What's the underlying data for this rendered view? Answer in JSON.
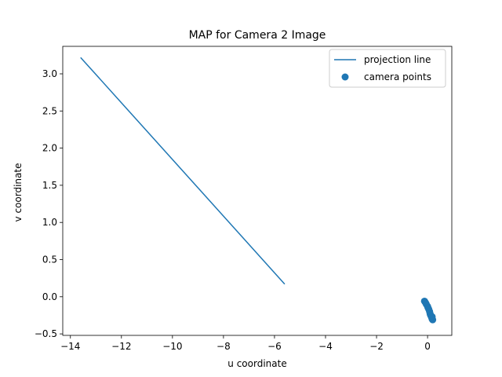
{
  "chart_data": {
    "type": "scatter",
    "title": "MAP for Camera 2 Image",
    "xlabel": "u coordinate",
    "ylabel": "v coordinate",
    "xlim": [
      -14.3,
      0.95
    ],
    "ylim": [
      -0.52,
      3.37
    ],
    "x_ticks": [
      -14,
      -12,
      -10,
      -8,
      -6,
      -4,
      -2,
      0
    ],
    "y_ticks": [
      -0.5,
      0.0,
      0.5,
      1.0,
      1.5,
      2.0,
      2.5,
      3.0
    ],
    "x_tick_labels": [
      "−14",
      "−12",
      "−10",
      "−8",
      "−6",
      "−4",
      "−2",
      "0"
    ],
    "y_tick_labels": [
      "−0.5",
      "0.0",
      "0.5",
      "1.0",
      "1.5",
      "2.0",
      "2.5",
      "3.0"
    ],
    "grid": false,
    "legend_position": "top-right",
    "color": "#1f77b4",
    "series": [
      {
        "name": "projection line",
        "kind": "line",
        "x": [
          -13.6,
          -5.6
        ],
        "y": [
          3.22,
          0.17
        ]
      },
      {
        "name": "camera points",
        "kind": "scatter",
        "x": [
          -0.12,
          -0.08,
          -0.05,
          0.0,
          0.02,
          0.05,
          0.08,
          0.1,
          0.12,
          0.14,
          0.16,
          0.18,
          0.2,
          0.18
        ],
        "y": [
          -0.06,
          -0.08,
          -0.1,
          -0.13,
          -0.15,
          -0.17,
          -0.2,
          -0.23,
          -0.25,
          -0.26,
          -0.28,
          -0.3,
          -0.31,
          -0.27
        ]
      }
    ]
  }
}
